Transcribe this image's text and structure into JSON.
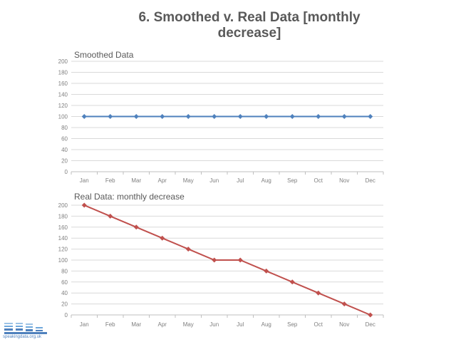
{
  "slide": {
    "title": "6. Smoothed v. Real Data [monthly decrease]"
  },
  "logo": {
    "text": "speakingdata.org.uk",
    "color": "#4f81bd"
  },
  "chart_data": [
    {
      "type": "line",
      "title": "Smoothed Data",
      "categories": [
        "Jan",
        "Feb",
        "Mar",
        "Apr",
        "May",
        "Jun",
        "Jul",
        "Aug",
        "Sep",
        "Oct",
        "Nov",
        "Dec"
      ],
      "series": [
        {
          "name": "Smoothed Data",
          "values": [
            100,
            100,
            100,
            100,
            100,
            100,
            100,
            100,
            100,
            100,
            100,
            100
          ],
          "color": "#4f81bd",
          "marker": "diamond"
        }
      ],
      "yticks": [
        0,
        20,
        40,
        60,
        80,
        100,
        120,
        140,
        160,
        180,
        200
      ],
      "ylim": [
        0,
        200
      ],
      "xlabel": "",
      "ylabel": "",
      "grid": true
    },
    {
      "type": "line",
      "title": "Real Data: monthly decrease",
      "categories": [
        "Jan",
        "Feb",
        "Mar",
        "Apr",
        "May",
        "Jun",
        "Jul",
        "Aug",
        "Sep",
        "Oct",
        "Nov",
        "Dec"
      ],
      "series": [
        {
          "name": "Real Data",
          "values": [
            200,
            180,
            160,
            140,
            120,
            100,
            100,
            80,
            60,
            40,
            20,
            0
          ],
          "color": "#c0504d",
          "marker": "diamond"
        }
      ],
      "yticks": [
        0,
        20,
        40,
        60,
        80,
        100,
        120,
        140,
        160,
        180,
        200
      ],
      "ylim": [
        0,
        200
      ],
      "xlabel": "",
      "ylabel": "",
      "grid": true
    }
  ]
}
